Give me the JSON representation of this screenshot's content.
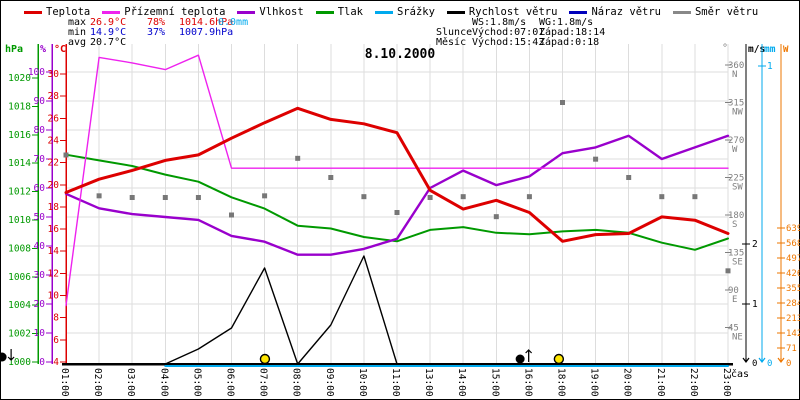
{
  "title": "8.10.2000",
  "legend": {
    "items": [
      {
        "label": "Teplota",
        "color": "#dd0000"
      },
      {
        "label": "Přízemní teplota",
        "color": "#ee22ee"
      },
      {
        "label": "Vlhkost",
        "color": "#9900cc"
      },
      {
        "label": "Tlak",
        "color": "#009900"
      },
      {
        "label": "Srážky",
        "color": "#00aaee"
      },
      {
        "label": "Rychlost větru",
        "color": "#000000"
      },
      {
        "label": "Náraz větru",
        "color": "#0000bb"
      },
      {
        "label": "Směr větru",
        "color": "#888888"
      }
    ]
  },
  "stats": {
    "max": {
      "label": "max",
      "temp": "26.9°C",
      "humidity": "78%",
      "pressure": "1014.6hPa",
      "precip": "0.0mm",
      "value_color": "#dd0000",
      "precip_color": "#00aaee"
    },
    "min": {
      "label": "min",
      "temp": "14.9°C",
      "humidity": "37%",
      "pressure": "1007.9hPa",
      "value_color": "#0000cc"
    },
    "avg": {
      "label": "avg",
      "temp": "20.7°C",
      "value_color": "#000000"
    },
    "wind": {
      "ws": "WS:1.8m/s",
      "wg": "WG:1.8m/s"
    },
    "sun": {
      "label": "Slunce",
      "rise": "Východ:07:01",
      "set": "Západ:18:14"
    },
    "moon": {
      "label": "Měsíc",
      "rise": "Východ:15:43",
      "set": "Západ:0:18"
    }
  },
  "chart_data": {
    "type": "line",
    "x_label": "čas",
    "categories": [
      "01:00",
      "02:00",
      "03:00",
      "04:00",
      "05:00",
      "06:00",
      "07:00",
      "08:00",
      "09:00",
      "10:00",
      "11:00",
      "13:00",
      "14:00",
      "15:00",
      "16:00",
      "18:00",
      "19:00",
      "20:00",
      "21:00",
      "22:00",
      "23:00"
    ],
    "axes": {
      "temperature": {
        "unit": "°C",
        "color": "#dd0000",
        "range": [
          4,
          30
        ],
        "ticks": [
          30,
          28,
          26,
          24,
          22,
          20,
          18,
          16,
          14,
          12,
          10,
          8,
          6,
          4
        ]
      },
      "humidity": {
        "unit": "%",
        "color": "#9900cc",
        "range": [
          0,
          100
        ],
        "ticks": [
          100,
          90,
          80,
          70,
          60,
          50,
          40,
          30,
          20,
          10,
          0
        ]
      },
      "pressure": {
        "unit": "hPa",
        "color": "#009900",
        "range": [
          1000,
          1020
        ],
        "ticks": [
          1020,
          1018,
          1016,
          1014,
          1012,
          1010,
          1008,
          1006,
          1004,
          1002,
          1000
        ]
      },
      "wind_speed": {
        "unit": "m/s",
        "color": "#000000",
        "ticks": [
          2,
          1
        ],
        "zero_label": "0"
      },
      "precipitation": {
        "unit": "mm",
        "color": "#00aaee",
        "ticks": [
          1
        ],
        "zero_label": "0"
      },
      "radiation": {
        "unit": "W",
        "color": "#ee7700",
        "ticks": [
          639,
          568,
          497,
          426,
          355,
          284,
          213,
          142,
          71
        ],
        "zero_label": "0"
      },
      "direction": {
        "unit": "°",
        "color": "#808080",
        "ticks": [
          {
            "deg": 360,
            "name": "N"
          },
          {
            "deg": 315,
            "name": "NW"
          },
          {
            "deg": 270,
            "name": "W"
          },
          {
            "deg": 225,
            "name": "SW"
          },
          {
            "deg": 180,
            "name": "S"
          },
          {
            "deg": 135,
            "name": "SE"
          },
          {
            "deg": 90,
            "name": "E"
          },
          {
            "deg": 45,
            "name": "NE"
          }
        ]
      }
    },
    "series": [
      {
        "name": "Tlak",
        "axis": "pressure",
        "color": "#009900",
        "width": 2,
        "values": [
          1014.6,
          1014.2,
          1013.8,
          1013.2,
          1012.7,
          1011.6,
          1010.8,
          1009.6,
          1009.4,
          1008.8,
          1008.5,
          1009.3,
          1009.5,
          1009.1,
          1009.0,
          1009.2,
          1009.3,
          1009.1,
          1008.4,
          1007.9,
          1008.7
        ]
      },
      {
        "name": "Vlhkost",
        "axis": "humidity",
        "color": "#9900cc",
        "width": 2.4,
        "values": [
          58,
          53,
          51,
          50,
          49,
          43.5,
          41.5,
          37,
          37,
          39,
          42.5,
          60,
          66,
          61,
          64,
          72,
          74,
          78,
          70,
          74,
          78
        ]
      },
      {
        "name": "Přízemní teplota",
        "axis": "temperature",
        "color": "#ee22ee",
        "width": 1.4,
        "values": [
          9.1,
          31.5,
          31.0,
          30.4,
          31.7,
          21.5,
          21.5,
          21.5,
          21.5,
          21.5,
          21.5,
          21.5,
          21.5,
          21.5,
          21.5,
          21.5,
          21.5,
          21.5,
          21.5,
          21.5,
          21.5
        ]
      },
      {
        "name": "Rychlost větru",
        "axis": "wind_speed",
        "color": "#000000",
        "width": 1.4,
        "values": [
          0,
          0,
          0,
          0,
          0.25,
          0.6,
          1.6,
          0,
          0.65,
          1.8,
          0,
          0,
          0,
          0,
          0,
          0,
          0,
          0,
          0,
          0,
          0
        ]
      },
      {
        "name": "Srážky",
        "axis": "precipitation",
        "color": "#00aaee",
        "width": 2,
        "start_index": 3,
        "values": [
          0,
          0,
          0,
          0,
          0,
          0,
          0,
          0,
          0,
          0,
          0,
          0,
          0,
          0,
          0,
          0,
          0,
          0
        ]
      },
      {
        "name": "Teplota",
        "axis": "temperature",
        "color": "#dd0000",
        "width": 3,
        "values": [
          19.3,
          20.5,
          21.3,
          22.2,
          22.7,
          24.2,
          25.6,
          26.9,
          25.9,
          25.5,
          24.7,
          19.5,
          17.8,
          18.6,
          17.5,
          14.9,
          15.5,
          15.6,
          17.1,
          16.8,
          15.6
        ]
      },
      {
        "name": "Směr větru",
        "axis": "direction",
        "color": "#777777",
        "type": "squares",
        "values": [
          252,
          203,
          201,
          201,
          201,
          180,
          203,
          248,
          225,
          202,
          183,
          201,
          202,
          178,
          202,
          315,
          247,
          225,
          202,
          202,
          113
        ]
      }
    ],
    "markers": [
      {
        "name": "moonset-marker",
        "kind": "moon",
        "x_index": -1.93,
        "arrow": "down"
      },
      {
        "name": "sunrise-marker",
        "kind": "sun",
        "x_index": 6.01
      },
      {
        "name": "moonrise-marker",
        "kind": "moon",
        "x_index": 13.72,
        "arrow": "up"
      },
      {
        "name": "sunset-marker",
        "kind": "sun",
        "x_index": 14.89
      }
    ],
    "sun_color": "#ffe600",
    "grid": true,
    "legend_position": "top"
  }
}
